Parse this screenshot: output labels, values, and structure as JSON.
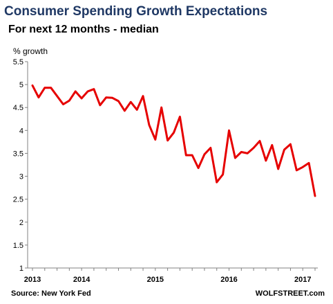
{
  "header": {
    "title": "Consumer Spending Growth Expectations",
    "subtitle": "For next 12 months - median"
  },
  "footer": {
    "source": "Source: New York Fed",
    "credit": "WOLFSTREET.com"
  },
  "colors": {
    "line": "#e60000",
    "title": "#1f3864",
    "axis": "#808080"
  },
  "chart_data": {
    "type": "line",
    "ylabel": "% growth",
    "xlabel": "",
    "ylim": [
      1,
      5.5
    ],
    "yticks": [
      "1",
      "1.5",
      "2",
      "2.5",
      "3",
      "3.5",
      "4",
      "4.5",
      "5",
      "5.5"
    ],
    "ytick_values": [
      1,
      1.5,
      2,
      2.5,
      3,
      3.5,
      4,
      4.5,
      5,
      5.5
    ],
    "xticks": [
      "2013",
      "2014",
      "2015",
      "2016",
      "2017"
    ],
    "xtick_month_index": [
      0,
      8,
      20,
      32,
      44
    ],
    "grid": false,
    "legend": "none",
    "series": [
      {
        "values": [
          4.98,
          4.72,
          4.93,
          4.93,
          4.75,
          4.57,
          4.65,
          4.85,
          4.7,
          4.85,
          4.9,
          4.55,
          4.72,
          4.71,
          4.64,
          4.43,
          4.62,
          4.45,
          4.75,
          4.12,
          3.8,
          4.5,
          3.78,
          3.95,
          4.3,
          3.46,
          3.46,
          3.18,
          3.48,
          3.62,
          2.87,
          3.04,
          4.0,
          3.4,
          3.53,
          3.5,
          3.62,
          3.77,
          3.34,
          3.68,
          3.16,
          3.58,
          3.7,
          3.13,
          3.2,
          3.29,
          2.57
        ]
      }
    ]
  }
}
